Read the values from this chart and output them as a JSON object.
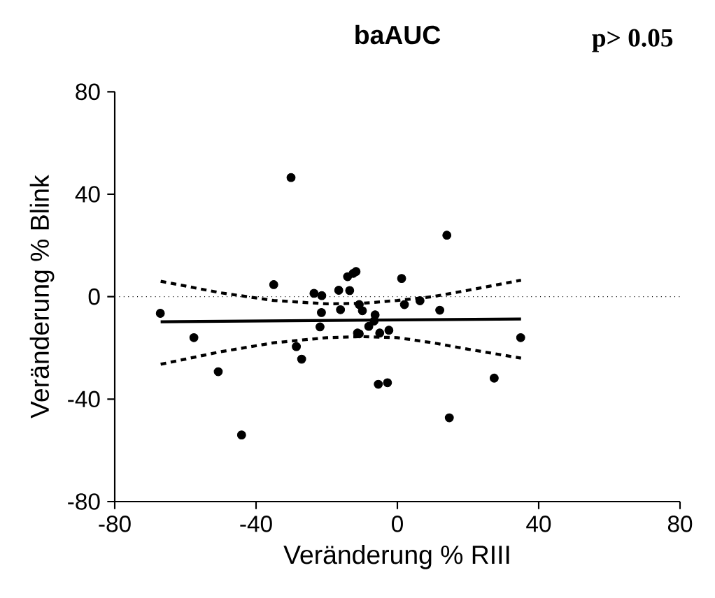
{
  "chart_data": {
    "type": "scatter",
    "title": "baAUC",
    "xlabel": "Veränderung % RIII",
    "ylabel": "Veränderung % Blink",
    "annotations": [
      "p> 0.05"
    ],
    "xlim": [
      -80,
      80
    ],
    "ylim": [
      -80,
      80
    ],
    "xticks": [
      -80,
      -40,
      0,
      40,
      80
    ],
    "yticks": [
      -80,
      -40,
      0,
      40,
      80
    ],
    "grid": false,
    "ref_lines": [
      {
        "axis": "y",
        "value": 0,
        "line_style": "dotted"
      }
    ],
    "series": [
      {
        "color": "#000000",
        "marker": "circle",
        "x": [
          -67.1,
          -57.6,
          -50.7,
          -44.1,
          -35,
          -30.1,
          -28.6,
          -27.1,
          -23.6,
          -21.4,
          -21.5,
          -21.9,
          -16.6,
          -16.1,
          -14.1,
          -13.5,
          -12.5,
          -11.7,
          -11.3,
          -10.8,
          -10.8,
          -9.9,
          -8.1,
          -6.3,
          -6.6,
          -5,
          -5.4,
          -2.8,
          -2.4,
          1.2,
          2,
          6.4,
          12,
          14,
          14.7,
          27.4,
          34.9
        ],
        "values": [
          -6.5,
          -16,
          -29.3,
          -54,
          4.7,
          46.5,
          -19.5,
          -24.4,
          1.3,
          0.4,
          -6.2,
          -11.8,
          2.5,
          -5.1,
          7.8,
          2.4,
          9.1,
          9.8,
          -14.2,
          -3.1,
          -14.5,
          -5.5,
          -11.6,
          -7.1,
          -9.5,
          -14.2,
          -34.2,
          -33.6,
          -13.1,
          7.1,
          -3.1,
          -1.6,
          -5.3,
          24,
          -47.3,
          -31.8,
          -16
        ]
      },
      {
        "type": "line",
        "color": "#000000",
        "line_style": "solid",
        "marker": "none",
        "x": [
          -67,
          35
        ],
        "values": [
          -9.8,
          -8.7
        ]
      },
      {
        "type": "line",
        "color": "#000000",
        "line_style": "dashed",
        "marker": "none",
        "x": [
          -67,
          -50,
          -35,
          -20,
          -10,
          0,
          10,
          20,
          35
        ],
        "values": [
          6,
          1.5,
          -1.5,
          -2.8,
          -2.6,
          -1.5,
          0,
          2.5,
          6.4
        ]
      },
      {
        "type": "line",
        "color": "#000000",
        "line_style": "dashed",
        "marker": "none",
        "x": [
          -67,
          -50,
          -35,
          -20,
          -10,
          0,
          10,
          20,
          35
        ],
        "values": [
          -26.4,
          -21.5,
          -18,
          -16,
          -15.6,
          -16,
          -18,
          -20.5,
          -24
        ]
      }
    ]
  }
}
